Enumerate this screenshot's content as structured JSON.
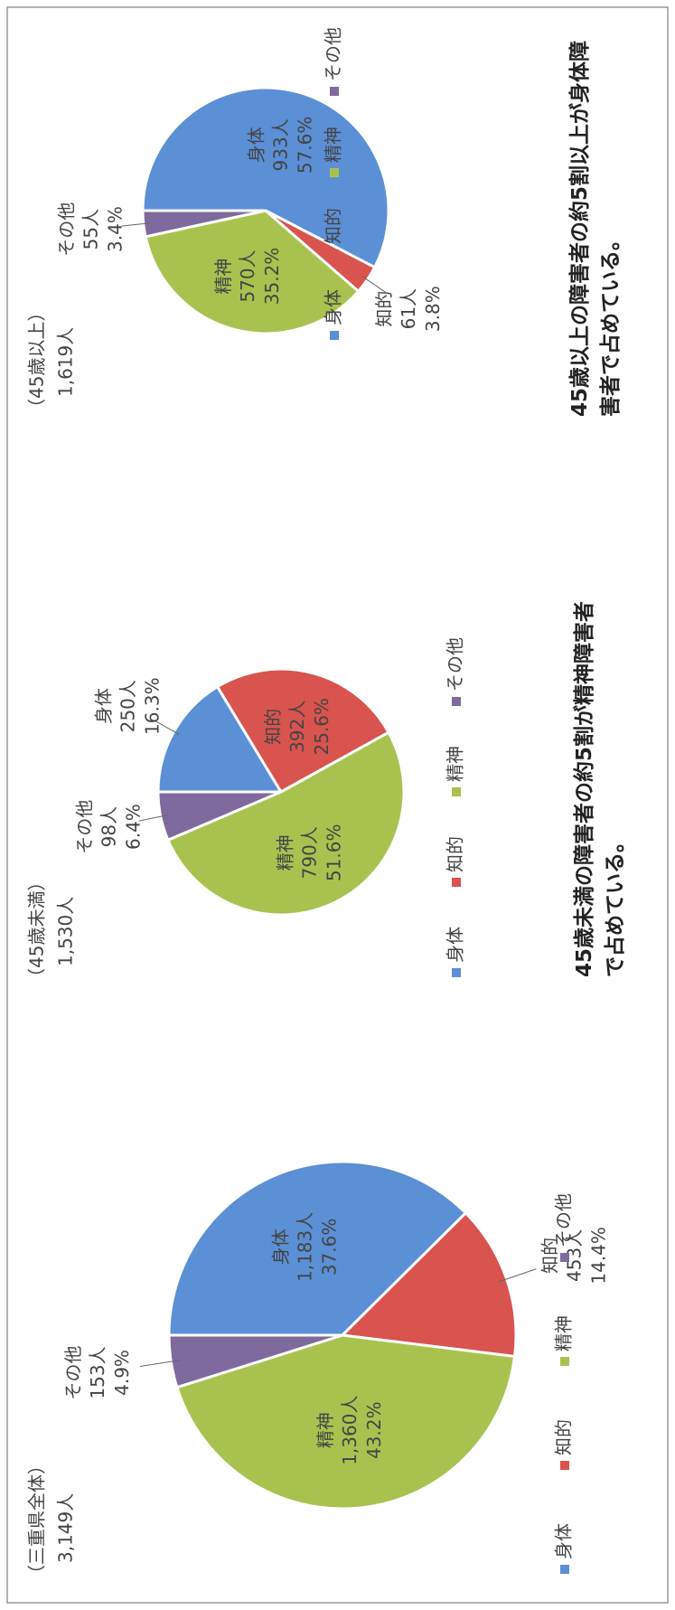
{
  "chart_data": [
    {
      "type": "pie",
      "title": "（三重県全体）",
      "total": 3149,
      "total_label": "3,149人",
      "categories": [
        "身体",
        "知的",
        "精神",
        "その他"
      ],
      "colors": [
        "#5b8fd6",
        "#d9534f",
        "#a9c24f",
        "#7e6a9c"
      ],
      "values": [
        1183,
        453,
        1360,
        153
      ],
      "value_labels": [
        "1,183人",
        "453人",
        "1,360人",
        "153人"
      ],
      "percentages": [
        37.6,
        14.4,
        43.2,
        4.9
      ],
      "percentage_labels": [
        "37.6%",
        "14.4%",
        "43.2%",
        "4.9%"
      ]
    },
    {
      "type": "pie",
      "title": "（45歳未満）",
      "total": 1530,
      "total_label": "1,530人",
      "categories": [
        "身体",
        "知的",
        "精神",
        "その他"
      ],
      "colors": [
        "#5b8fd6",
        "#d9534f",
        "#a9c24f",
        "#7e6a9c"
      ],
      "values": [
        250,
        392,
        790,
        98
      ],
      "value_labels": [
        "250人",
        "392人",
        "790人",
        "98人"
      ],
      "percentages": [
        16.3,
        25.6,
        51.6,
        6.4
      ],
      "percentage_labels": [
        "16.3%",
        "25.6%",
        "51.6%",
        "6.4%"
      ],
      "note": "45歳未満の障害者の約5割が精神障害者で占めている。"
    },
    {
      "type": "pie",
      "title": "（45歳以上）",
      "total": 1619,
      "total_label": "1,619人",
      "categories": [
        "身体",
        "知的",
        "精神",
        "その他"
      ],
      "colors": [
        "#5b8fd6",
        "#d9534f",
        "#a9c24f",
        "#7e6a9c"
      ],
      "values": [
        933,
        61,
        570,
        55
      ],
      "value_labels": [
        "933人",
        "61人",
        "570人",
        "55人"
      ],
      "percentages": [
        57.6,
        3.8,
        35.2,
        3.4
      ],
      "percentage_labels": [
        "57.6%",
        "3.8%",
        "35.2%",
        "3.4%"
      ],
      "note": "45歳以上の障害者の約5割以上が身体障害者で占めている。"
    }
  ]
}
